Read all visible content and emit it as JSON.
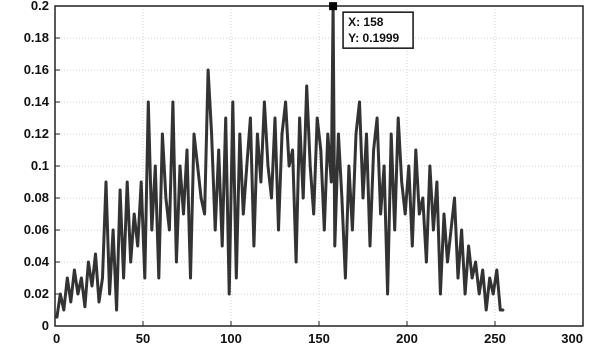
{
  "chart_data": {
    "type": "line",
    "title": "",
    "xlabel": "",
    "ylabel": "",
    "xlim": [
      0,
      300
    ],
    "ylim": [
      0,
      0.2
    ],
    "xticks": [
      0,
      50,
      100,
      150,
      200,
      250,
      300
    ],
    "yticks": [
      0,
      0.02,
      0.04,
      0.06,
      0.08,
      0.1,
      0.12,
      0.14,
      0.16,
      0.18,
      0.2
    ],
    "ytick_labels": [
      "0",
      "0.02",
      "0.04",
      "0.06",
      "0.08",
      "0.1",
      "0.12",
      "0.14",
      "0.16",
      "0.18",
      "0.2"
    ],
    "grid": true,
    "line_color": "#333333",
    "series": [
      {
        "x": [
          1,
          3,
          5,
          7,
          9,
          11,
          13,
          15,
          17,
          19,
          21,
          23,
          25,
          27,
          29,
          31,
          33,
          35,
          37,
          39,
          41,
          43,
          45,
          47,
          49,
          51,
          53,
          55,
          57,
          59,
          61,
          63,
          65,
          67,
          69,
          71,
          73,
          75,
          77,
          79,
          81,
          83,
          85,
          87,
          89,
          91,
          93,
          95,
          97,
          99,
          101,
          103,
          105,
          107,
          109,
          111,
          113,
          115,
          117,
          119,
          121,
          123,
          125,
          127,
          129,
          131,
          133,
          135,
          137,
          139,
          141,
          143,
          145,
          147,
          149,
          151,
          153,
          155,
          157,
          158,
          159,
          161,
          163,
          165,
          167,
          169,
          171,
          173,
          175,
          177,
          179,
          181,
          183,
          185,
          187,
          189,
          191,
          193,
          195,
          197,
          199,
          201,
          203,
          205,
          207,
          209,
          211,
          213,
          215,
          217,
          219,
          221,
          223,
          225,
          227,
          229,
          231,
          233,
          235,
          237,
          239,
          241,
          243,
          245,
          247,
          249,
          251,
          253,
          255
        ],
        "values": [
          0.005,
          0.02,
          0.01,
          0.03,
          0.015,
          0.035,
          0.02,
          0.03,
          0.012,
          0.04,
          0.025,
          0.045,
          0.015,
          0.03,
          0.09,
          0.02,
          0.06,
          0.01,
          0.085,
          0.03,
          0.09,
          0.04,
          0.07,
          0.05,
          0.09,
          0.03,
          0.14,
          0.06,
          0.1,
          0.03,
          0.12,
          0.08,
          0.06,
          0.14,
          0.04,
          0.1,
          0.07,
          0.11,
          0.03,
          0.12,
          0.1,
          0.08,
          0.07,
          0.16,
          0.12,
          0.06,
          0.11,
          0.05,
          0.13,
          0.02,
          0.14,
          0.03,
          0.12,
          0.07,
          0.1,
          0.13,
          0.05,
          0.12,
          0.09,
          0.14,
          0.1,
          0.08,
          0.13,
          0.06,
          0.12,
          0.14,
          0.1,
          0.11,
          0.04,
          0.13,
          0.08,
          0.15,
          0.1,
          0.07,
          0.13,
          0.11,
          0.06,
          0.12,
          0.09,
          0.1999,
          0.05,
          0.12,
          0.08,
          0.03,
          0.1,
          0.06,
          0.12,
          0.14,
          0.08,
          0.12,
          0.05,
          0.11,
          0.13,
          0.07,
          0.1,
          0.02,
          0.12,
          0.06,
          0.13,
          0.09,
          0.07,
          0.1,
          0.05,
          0.11,
          0.07,
          0.08,
          0.04,
          0.1,
          0.06,
          0.09,
          0.02,
          0.07,
          0.04,
          0.06,
          0.08,
          0.03,
          0.06,
          0.02,
          0.05,
          0.03,
          0.04,
          0.02,
          0.035,
          0.01,
          0.03,
          0.02,
          0.035,
          0.01,
          0.01
        ]
      }
    ],
    "datatip": {
      "x_label": "X: 158",
      "y_label": "Y: 0.1999",
      "x": 158,
      "y": 0.1999
    }
  }
}
